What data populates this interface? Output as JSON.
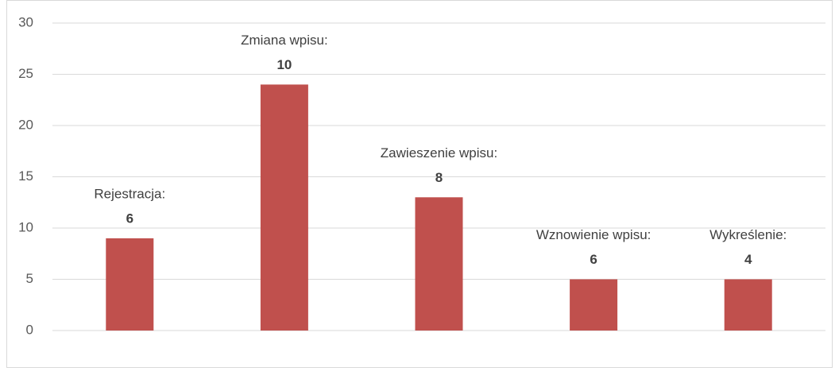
{
  "chart_data": {
    "type": "bar",
    "categories": [
      "Rejestracja:",
      "Zmiana wpisu:",
      "Zawieszenie wpisu:",
      "Wznowienie wpisu:",
      "Wykreślenie:"
    ],
    "values": [
      9,
      24,
      13,
      5,
      5
    ],
    "annotations": [
      6,
      10,
      8,
      6,
      4
    ],
    "color": "#c0504d",
    "ylim": [
      0,
      30
    ],
    "yticks": [
      0,
      5,
      10,
      15,
      20,
      25,
      30
    ],
    "grid": true
  }
}
